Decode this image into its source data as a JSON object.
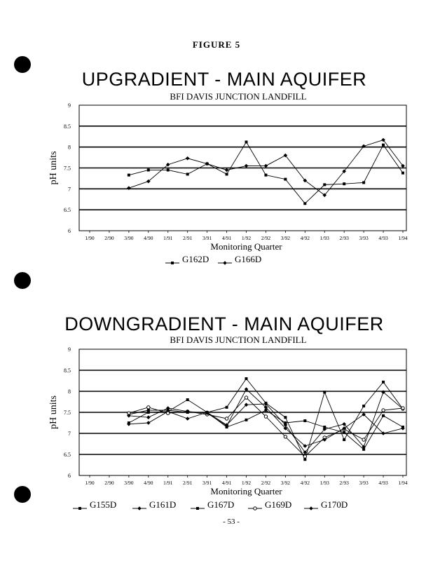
{
  "figure_label": "FIGURE 5",
  "page_number": "- 53 -",
  "charts": [
    {
      "title": "UPGRADIENT - MAIN AQUIFER",
      "subtitle": "BFI DAVIS JUNCTION LANDFILL",
      "xlabel": "Monitoring Quarter",
      "ylabel": "pH units"
    },
    {
      "title": "DOWNGRADIENT - MAIN AQUIFER",
      "subtitle": "BFI DAVIS JUNCTION LANDFILL",
      "xlabel": "Monitoring Quarter",
      "ylabel": "pH units"
    }
  ],
  "chart_data": [
    {
      "type": "line",
      "title": "UPGRADIENT - MAIN AQUIFER",
      "subtitle": "BFI DAVIS JUNCTION LANDFILL",
      "xlabel": "Monitoring Quarter",
      "ylabel": "pH units",
      "ylim": [
        6,
        9
      ],
      "yticks": [
        "6",
        "6.5",
        "7",
        "7.5",
        "8",
        "8.5",
        "9"
      ],
      "grid": true,
      "legend_position": "bottom",
      "categories": [
        "1/90",
        "2/90",
        "3/90",
        "4/90",
        "1/91",
        "2/91",
        "3/91",
        "4/91",
        "1/92",
        "2/92",
        "3/92",
        "4/92",
        "1/93",
        "2/93",
        "3/93",
        "4/93",
        "1/94"
      ],
      "series": [
        {
          "name": "G162D",
          "marker": "square",
          "values": [
            null,
            null,
            7.33,
            7.45,
            7.45,
            7.35,
            7.6,
            7.35,
            8.12,
            7.33,
            7.23,
            6.65,
            7.1,
            7.12,
            7.15,
            8.05,
            7.38
          ]
        },
        {
          "name": "G166D",
          "marker": "diamond",
          "values": [
            null,
            null,
            7.02,
            7.18,
            7.58,
            7.73,
            7.6,
            7.45,
            7.55,
            7.55,
            7.8,
            7.2,
            6.85,
            7.42,
            8.02,
            8.17,
            7.55
          ]
        }
      ]
    },
    {
      "type": "line",
      "title": "DOWNGRADIENT - MAIN AQUIFER",
      "subtitle": "BFI DAVIS JUNCTION LANDFILL",
      "xlabel": "Monitoring Quarter",
      "ylabel": "pH units",
      "ylim": [
        6,
        9
      ],
      "yticks": [
        "6",
        "6.5",
        "7",
        "7.5",
        "8",
        "8.5",
        "9"
      ],
      "grid": true,
      "legend_position": "bottom",
      "categories": [
        "1/90",
        "2/90",
        "3/90",
        "4/90",
        "1/91",
        "2/91",
        "3/91",
        "4/91",
        "1/92",
        "2/92",
        "3/92",
        "4/92",
        "1/93",
        "2/93",
        "3/93",
        "4/93",
        "1/94"
      ],
      "series": [
        {
          "name": "G155D",
          "marker": "square",
          "values": [
            null,
            null,
            7.25,
            7.5,
            7.52,
            7.8,
            7.5,
            7.15,
            7.32,
            7.55,
            7.25,
            7.3,
            7.15,
            7.02,
            6.62,
            7.42,
            7.15
          ]
        },
        {
          "name": "G161D",
          "marker": "diamond",
          "values": [
            null,
            null,
            7.22,
            7.25,
            7.52,
            7.35,
            7.5,
            7.2,
            7.68,
            7.7,
            7.2,
            6.55,
            7.1,
            7.22,
            6.68,
            7.98,
            7.58
          ]
        },
        {
          "name": "G167D",
          "marker": "square",
          "values": [
            null,
            null,
            7.45,
            7.55,
            7.55,
            7.5,
            7.5,
            7.62,
            8.3,
            7.72,
            7.38,
            6.38,
            7.98,
            6.85,
            7.65,
            8.22,
            7.58
          ]
        },
        {
          "name": "G169D",
          "marker": "circle",
          "values": [
            null,
            null,
            7.48,
            7.62,
            7.48,
            7.52,
            7.45,
            7.35,
            7.85,
            7.4,
            6.92,
            6.45,
            6.9,
            7.1,
            6.85,
            7.55,
            7.6
          ]
        },
        {
          "name": "G170D",
          "marker": "diamond",
          "values": [
            null,
            null,
            7.42,
            7.38,
            7.6,
            7.52,
            7.48,
            7.18,
            8.05,
            7.62,
            7.12,
            6.7,
            6.85,
            7.12,
            7.45,
            7.0,
            7.12
          ]
        }
      ]
    }
  ]
}
